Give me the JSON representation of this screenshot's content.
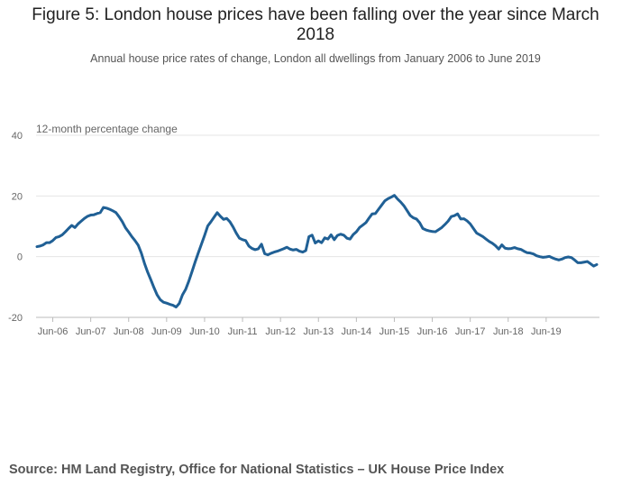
{
  "title_line1": "Figure 5: London house prices have been falling over the year since March",
  "title_line2": "2018",
  "subtitle": "Annual house price rates of change, London all dwellings from January 2006 to June 2019",
  "source": "Source: HM Land Registry, Office for National Statistics – UK House Price Index",
  "colors": {
    "series": "#206095",
    "grid": "#e4e4e4",
    "axis": "#bbbbbb"
  },
  "chart_data": {
    "type": "line",
    "title": "Figure 5: London house prices have been falling over the year since March 2018",
    "subtitle": "Annual house price rates of change, London all dwellings from January 2006 to June 2019",
    "xlabel": "",
    "ylabel": "12-month percentage change",
    "ylim": [
      -20,
      40
    ],
    "yticks": [
      -20,
      0,
      20,
      40
    ],
    "grid": true,
    "x_start": "Jan-06",
    "x_tick_labels": [
      "Jun-06",
      "Jun-07",
      "Jun-08",
      "Jun-09",
      "Jun-10",
      "Jun-11",
      "Jun-12",
      "Jun-13",
      "Jun-14",
      "Jun-15",
      "Jun-16",
      "Jun-17",
      "Jun-18",
      "Jun-19"
    ],
    "series": [
      {
        "name": "London all dwellings",
        "values": [
          3.3,
          3.5,
          3.9,
          4.6,
          4.6,
          5.3,
          6.3,
          6.6,
          7.2,
          8.2,
          9.3,
          10.3,
          9.6,
          10.8,
          11.7,
          12.6,
          13.3,
          13.7,
          13.8,
          14.2,
          14.5,
          16.2,
          16.0,
          15.6,
          15.1,
          14.5,
          13.1,
          11.5,
          9.5,
          8.1,
          6.6,
          5.3,
          3.8,
          1.2,
          -2.2,
          -5.1,
          -7.6,
          -10.2,
          -12.6,
          -14.2,
          -15.0,
          -15.3,
          -15.7,
          -16.0,
          -16.6,
          -15.4,
          -12.6,
          -10.8,
          -8.1,
          -5.0,
          -1.8,
          1.2,
          4.1,
          7.0,
          10.1,
          11.5,
          13.0,
          14.5,
          13.3,
          12.3,
          12.6,
          11.5,
          9.8,
          7.8,
          6.1,
          5.6,
          5.3,
          3.5,
          2.7,
          2.3,
          2.6,
          4.1,
          1.0,
          0.6,
          1.1,
          1.5,
          1.8,
          2.2,
          2.6,
          3.1,
          2.5,
          2.2,
          2.4,
          1.8,
          1.5,
          2.0,
          6.6,
          7.1,
          4.5,
          5.2,
          4.6,
          6.2,
          5.8,
          7.2,
          5.6,
          7.0,
          7.4,
          7.1,
          6.1,
          5.8,
          7.3,
          8.2,
          9.6,
          10.4,
          11.2,
          12.7,
          14.1,
          14.2,
          15.6,
          17.0,
          18.4,
          19.1,
          19.6,
          20.2,
          19.0,
          18.0,
          16.8,
          15.2,
          13.6,
          12.8,
          12.4,
          11.2,
          9.3,
          8.8,
          8.5,
          8.3,
          8.2,
          8.9,
          9.6,
          10.6,
          11.7,
          13.2,
          13.5,
          14.1,
          12.4,
          12.5,
          11.8,
          10.8,
          9.3,
          7.8,
          7.2,
          6.6,
          5.8,
          5.0,
          4.4,
          3.6,
          2.5,
          3.9,
          2.8,
          2.6,
          2.7,
          3.0,
          2.6,
          2.4,
          1.8,
          1.3,
          1.2,
          0.9,
          0.3,
          0.0,
          -0.2,
          -0.1,
          0.1,
          -0.4,
          -0.8,
          -1.1,
          -0.8,
          -0.3,
          -0.1,
          -0.3,
          -1.1,
          -2.0,
          -2.0,
          -1.8,
          -1.6,
          -2.3,
          -3.1,
          -2.6
        ]
      }
    ]
  }
}
